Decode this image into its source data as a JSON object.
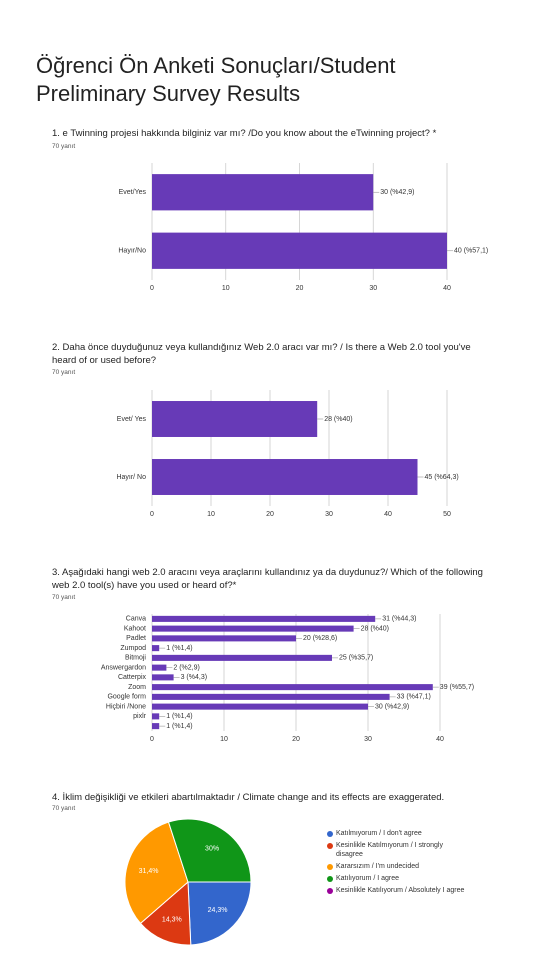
{
  "title": "Öğrenci Ön Anketi Sonuçları/Student Preliminary Survey Results",
  "chart_data": [
    {
      "type": "bar",
      "horizontal": true,
      "title": "1. e Twinning projesi hakkında  bilginiz var mı? /Do you know about the eTwinning project? *",
      "subtitle": "70 yanıt",
      "categories": [
        "Evet/Yes",
        "Hayır/No"
      ],
      "values": [
        30,
        40
      ],
      "value_labels": [
        "30 (%42,9)",
        "40 (%57,1)"
      ],
      "color": "#673ab7",
      "xlim": [
        0,
        40
      ],
      "xticks": [
        0,
        10,
        20,
        30,
        40
      ],
      "grid": true
    },
    {
      "type": "bar",
      "horizontal": true,
      "title": "2.   Daha önce  duyduğunuz veya  kullandığınız  Web 2.0 aracı var mı? /  Is there a Web 2.0 tool you've heard of or used before?",
      "subtitle": "70 yanıt",
      "categories": [
        "Evet/ Yes",
        "Hayır/ No"
      ],
      "values": [
        28,
        45
      ],
      "value_labels": [
        "28 (%40)",
        "45 (%64,3)"
      ],
      "color": "#673ab7",
      "xlim": [
        0,
        50
      ],
      "xticks": [
        0,
        10,
        20,
        30,
        40,
        50
      ],
      "grid": true
    },
    {
      "type": "bar",
      "horizontal": true,
      "title": "3. Aşağıdaki hangi web 2.0 aracını veya araçlarını kullandınız ya da duydunuz?/ Which of the following web 2.0 tool(s) have you used or heard of?*",
      "subtitle": "70 yanıt",
      "categories": [
        "Canva",
        "Kahoot",
        "Padlet",
        "Zumpod",
        "Bitmoji",
        "Answergardon",
        "Catterpix",
        "Zoom",
        "Google form",
        "Hiçbiri /None",
        "pixlr",
        null
      ],
      "values": [
        31,
        28,
        20,
        1,
        25,
        2,
        3,
        39,
        33,
        30,
        1,
        1
      ],
      "value_labels": [
        "31 (%44,3)",
        "28 (%40)",
        "20 (%28,6)",
        "1 (%1,4)",
        "25 (%35,7)",
        "2 (%2,9)",
        "3 (%4,3)",
        "39 (%55,7)",
        "33 (%47,1)",
        "30 (%42,9)",
        "1 (%1,4)",
        "1 (%1,4)"
      ],
      "color": "#673ab7",
      "xlim": [
        0,
        40
      ],
      "xticks": [
        0,
        10,
        20,
        30,
        40
      ],
      "grid": true
    },
    {
      "type": "pie",
      "title": "4.  İklim değişikliği ve etkileri abartılmaktadır  / Climate change and its effects are exaggerated.",
      "subtitle": "70 yanıt",
      "categories": [
        "Katılmıyorum / I don't agree",
        "Kesinlikle Katılmıyorum / I strongly disagree",
        "Kararsızım / I'm undecided",
        "Katılıyorum / I agree",
        "Kesinlikle Katılıyorum / Absolutely I agree"
      ],
      "values": [
        24.3,
        14.3,
        31.4,
        30,
        0
      ],
      "value_labels": [
        "24,3%",
        "14,3%",
        "31,4%",
        "30%",
        null
      ],
      "colors": [
        "#3366cc",
        "#dc3912",
        "#ff9900",
        "#109618",
        "#990099"
      ]
    }
  ]
}
